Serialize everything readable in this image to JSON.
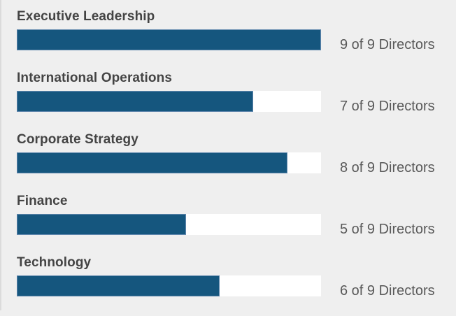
{
  "chart_data": {
    "type": "bar",
    "orientation": "horizontal",
    "title": "",
    "categories": [
      "Executive Leadership",
      "International Operations",
      "Corporate Strategy",
      "Finance",
      "Technology"
    ],
    "values": [
      9,
      7,
      8,
      5,
      6
    ],
    "max_value": 9,
    "xlim": [
      0,
      9
    ],
    "grid": false,
    "legend": "none",
    "value_labels": [
      "9 of 9 Directors",
      "7 of 9 Directors",
      "8 of 9 Directors",
      "5 of 9 Directors",
      "6 of 9 Directors"
    ],
    "colors": {
      "bar_fill": "#15567E",
      "bar_fill_border": "#5E86AC",
      "bar_track": "#FFFFFF",
      "background": "#EFEFEF",
      "category_text": "#444444",
      "value_text": "#595959"
    }
  }
}
